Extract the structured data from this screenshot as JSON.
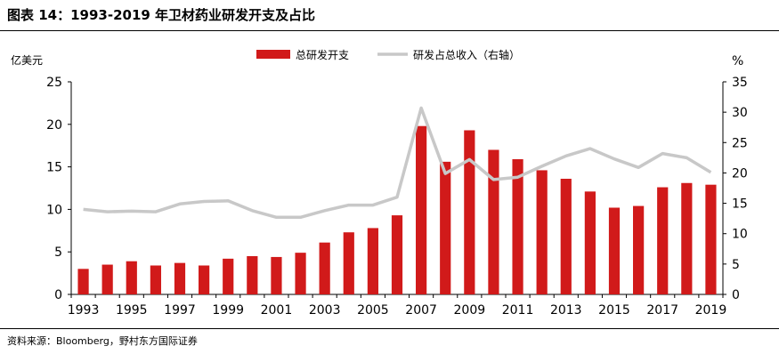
{
  "figure_title": "图表 14：1993-2019 年卫材药业研发开支及占比",
  "source_note": "资料来源：Bloomberg，野村东方国际证券",
  "colors": {
    "bar": "#d11a1a",
    "line": "#c8c8c8",
    "axis": "#000000"
  },
  "chart_data": {
    "type": "bar",
    "x": [
      1993,
      1994,
      1995,
      1996,
      1997,
      1998,
      1999,
      2000,
      2001,
      2002,
      2003,
      2004,
      2005,
      2006,
      2007,
      2008,
      2009,
      2010,
      2011,
      2012,
      2013,
      2014,
      2015,
      2016,
      2017,
      2018,
      2019
    ],
    "x_tick_labels": [
      "1993",
      "1995",
      "1997",
      "1999",
      "2001",
      "2003",
      "2005",
      "2007",
      "2009",
      "2011",
      "2013",
      "2015",
      "2017",
      "2019"
    ],
    "series": [
      {
        "name": "总研发开支",
        "type": "bar",
        "axis": "left",
        "values": [
          3.0,
          3.5,
          3.9,
          3.4,
          3.7,
          3.4,
          4.2,
          4.5,
          4.4,
          4.9,
          6.1,
          7.3,
          7.8,
          9.3,
          19.8,
          15.6,
          19.3,
          17.0,
          15.9,
          14.6,
          13.6,
          12.1,
          10.2,
          10.4,
          12.6,
          13.1,
          12.9
        ]
      },
      {
        "name": "研发占总收入（右轴）",
        "type": "line",
        "axis": "right",
        "values": [
          14.0,
          13.6,
          13.7,
          13.6,
          14.9,
          15.3,
          15.4,
          13.8,
          12.7,
          12.7,
          13.8,
          14.7,
          14.7,
          16.0,
          30.7,
          19.9,
          22.2,
          18.9,
          19.3,
          21.1,
          22.8,
          24.0,
          22.3,
          20.9,
          23.2,
          22.5,
          20.1
        ]
      }
    ],
    "ylabel": "亿美元",
    "y2label": "%",
    "ylim": [
      0,
      25
    ],
    "yticks": [
      0,
      5,
      10,
      15,
      20,
      25
    ],
    "y2lim": [
      0,
      35
    ],
    "y2ticks": [
      0,
      5,
      10,
      15,
      20,
      25,
      30,
      35
    ],
    "grid": false,
    "legend_position": "top-center"
  }
}
